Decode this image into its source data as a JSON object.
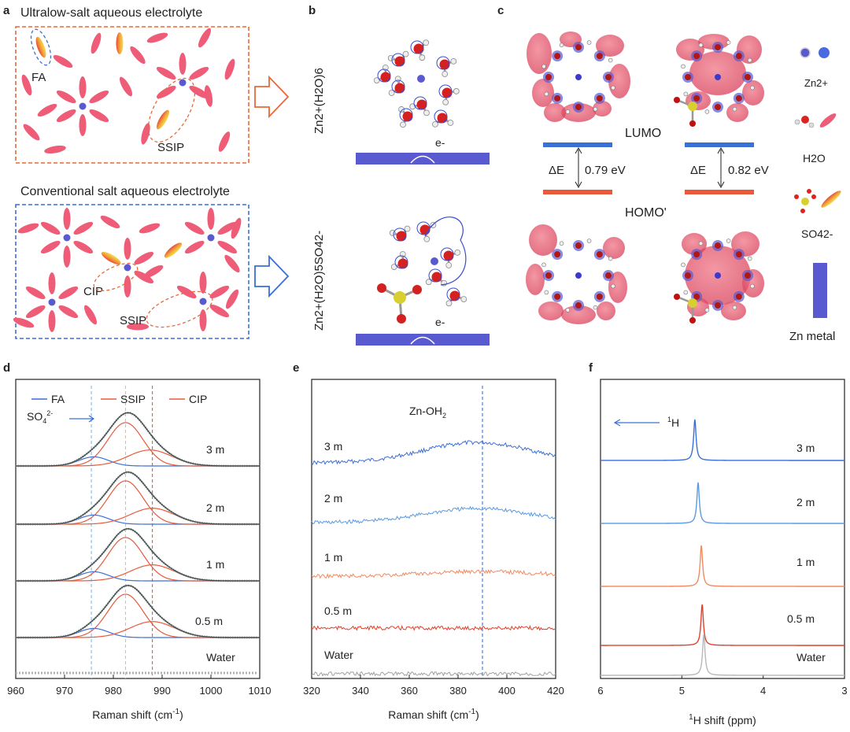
{
  "colors": {
    "orange": "#e8693a",
    "blue": "#3a6fd8",
    "pink": "#ee5c78",
    "zn": "#5a5ad0",
    "red": "#e85a3a",
    "grey": "#a0a0a0"
  },
  "panel_a": {
    "label": "a",
    "top_title": "Ultralow-salt aqueous electrolyte",
    "bottom_title": "Conventional salt aqueous electrolyte",
    "labels": {
      "fa": "FA",
      "ssip_top": "SSIP",
      "cip": "CIP",
      "ssip_bottom": "SSIP"
    }
  },
  "panel_b": {
    "label": "b",
    "top_species": "Zn2+(H2O)6",
    "bottom_species": "Zn2+(H2O)5SO42-",
    "electron": "e-"
  },
  "panel_c": {
    "label": "c",
    "lumo": "LUMO",
    "homo": "HOMO'",
    "delta_e_symbol": "ΔE",
    "delta_e_left": "0.79 eV",
    "delta_e_right": "0.82 eV",
    "legend": {
      "zn": "Zn2+",
      "h2o": "H2O",
      "so4": "SO42-",
      "metal": "Zn metal"
    }
  },
  "chart_data": [
    {
      "id": "d",
      "type": "line",
      "title": "",
      "xlabel": "Raman shift (cm-1)",
      "xlim": [
        960,
        1010
      ],
      "xticks": [
        960,
        970,
        980,
        990,
        1000,
        1010
      ],
      "legend": [
        "FA",
        "SSIP",
        "CIP"
      ],
      "annotation": "SO42-",
      "reference_lines": [
        975.5,
        982.5,
        988
      ],
      "series": [
        {
          "name": "3 m",
          "peak_center": 983,
          "fa": 976,
          "ssip": 982.5,
          "cip": 987.5
        },
        {
          "name": "2 m",
          "peak_center": 982.5,
          "fa": 976,
          "ssip": 982.5,
          "cip": 988
        },
        {
          "name": "1 m",
          "peak_center": 982.5,
          "fa": 976,
          "ssip": 982.5,
          "cip": 988
        },
        {
          "name": "0.5 m",
          "peak_center": 982.5,
          "fa": 976,
          "ssip": 982.5,
          "cip": 988
        },
        {
          "name": "Water",
          "peak_center": null
        }
      ]
    },
    {
      "id": "e",
      "type": "line",
      "title": "",
      "xlabel": "Raman shift (cm-1)",
      "xlim": [
        320,
        420
      ],
      "xticks": [
        320,
        340,
        360,
        380,
        400,
        420
      ],
      "annotation": "Zn-OH2",
      "reference_lines": [
        390
      ],
      "series": [
        {
          "name": "3 m",
          "broad_peak": 388
        },
        {
          "name": "2 m",
          "broad_peak": 388
        },
        {
          "name": "1 m",
          "broad_peak": 390
        },
        {
          "name": "0.5 m",
          "broad_peak": null
        },
        {
          "name": "Water",
          "broad_peak": null
        }
      ]
    },
    {
      "id": "f",
      "type": "line",
      "title": "",
      "xlabel": "1H shift (ppm)",
      "xlim": [
        6,
        3
      ],
      "xticks": [
        6,
        5,
        4,
        3
      ],
      "annotation": "1H",
      "series": [
        {
          "name": "3 m",
          "peak_ppm": 4.84
        },
        {
          "name": "2 m",
          "peak_ppm": 4.8
        },
        {
          "name": "1 m",
          "peak_ppm": 4.76
        },
        {
          "name": "0.5 m",
          "peak_ppm": 4.75
        },
        {
          "name": "Water",
          "peak_ppm": 4.73
        }
      ]
    }
  ]
}
